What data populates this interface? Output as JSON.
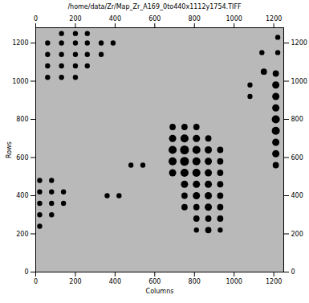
{
  "chart_data": {
    "type": "scatter",
    "title": "/home/data/Zr/Map_Zr_A169_0to440x1112y1754.TIFF",
    "x_label": "Columns",
    "y_label": "Rows",
    "color": "#000000",
    "marker": "circle",
    "xlim": [
      0,
      1250
    ],
    "ylim": [
      0,
      1280
    ],
    "xticks": [
      0,
      200,
      400,
      600,
      800,
      1000,
      1200
    ],
    "yticks": [
      0,
      200,
      400,
      600,
      800,
      1000,
      1200
    ],
    "grid": false,
    "x": [
      60,
      130,
      200,
      260,
      330,
      390,
      60,
      130,
      200,
      260,
      330,
      60,
      130,
      200,
      260,
      130,
      200,
      260,
      60,
      130,
      200,
      1210,
      1210,
      1210,
      1210,
      1210,
      1210,
      1210,
      1210,
      1210,
      1150,
      1140,
      1220,
      1220,
      1080,
      1080,
      690,
      750,
      810,
      870,
      690,
      750,
      810,
      870,
      930,
      690,
      750,
      810,
      870,
      930,
      690,
      750,
      810,
      870,
      930,
      750,
      810,
      870,
      930,
      750,
      810,
      870,
      930,
      750,
      810,
      870,
      930,
      810,
      870,
      930,
      810,
      870,
      930,
      690,
      750,
      810,
      20,
      80,
      20,
      80,
      140,
      20,
      80,
      140,
      20,
      80,
      20,
      480,
      540,
      420,
      360
    ],
    "y": [
      1200,
      1200,
      1200,
      1200,
      1200,
      1200,
      1140,
      1140,
      1140,
      1140,
      1140,
      1080,
      1080,
      1080,
      1080,
      1250,
      1250,
      1250,
      1020,
      1020,
      1020,
      1040,
      980,
      920,
      860,
      800,
      740,
      680,
      620,
      560,
      1050,
      1150,
      1150,
      1230,
      980,
      920,
      700,
      700,
      700,
      700,
      640,
      640,
      640,
      640,
      640,
      580,
      580,
      580,
      580,
      580,
      520,
      520,
      520,
      520,
      520,
      460,
      460,
      460,
      460,
      400,
      400,
      400,
      400,
      340,
      340,
      340,
      340,
      280,
      280,
      280,
      220,
      220,
      220,
      760,
      760,
      760,
      480,
      480,
      420,
      420,
      420,
      360,
      360,
      360,
      300,
      300,
      240,
      560,
      560,
      400,
      400
    ],
    "sizes": [
      2,
      2,
      2,
      2,
      2,
      2,
      2,
      2,
      2,
      2,
      2,
      2,
      2,
      2,
      2,
      2,
      2,
      2,
      2,
      2,
      2,
      3,
      4,
      4,
      4,
      5,
      5,
      4,
      4,
      3,
      3,
      2,
      2,
      2,
      2,
      2,
      4,
      5,
      4,
      3,
      5,
      6,
      5,
      4,
      3,
      5,
      6,
      5,
      4,
      3,
      4,
      5,
      5,
      4,
      3,
      4,
      4,
      4,
      3,
      3,
      4,
      4,
      3,
      3,
      3,
      4,
      3,
      3,
      3,
      3,
      2,
      3,
      2,
      3,
      3,
      3,
      2,
      2,
      2,
      2,
      2,
      2,
      2,
      2,
      2,
      2,
      2,
      2,
      2,
      2,
      2
    ]
  }
}
